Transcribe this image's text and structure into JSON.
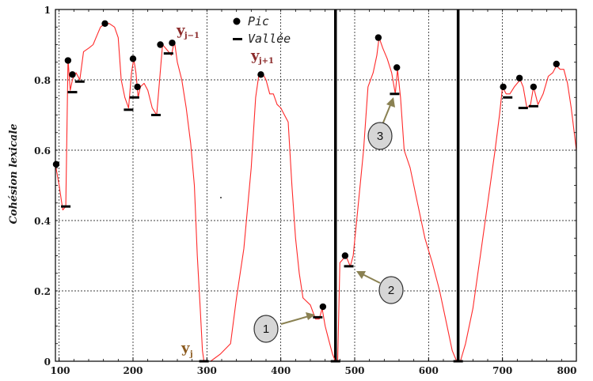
{
  "chart_data": {
    "type": "line",
    "title": "",
    "xlabel": "",
    "ylabel": "Cohésion lexicale",
    "xlim": [
      95,
      800
    ],
    "ylim": [
      0,
      1
    ],
    "x_ticks": [
      "100",
      "200",
      "300",
      "400",
      "500",
      "600",
      "700",
      "800"
    ],
    "y_ticks": [
      "0",
      "0.2",
      "0.4",
      "0.6",
      "0.8",
      "1"
    ],
    "grid": true,
    "line_color": "#ff2a2a",
    "series": [
      {
        "values": [
          [
            95,
            0.56
          ],
          [
            100,
            0.5
          ],
          [
            105,
            0.43
          ],
          [
            109,
            0.44
          ],
          [
            112,
            0.86
          ],
          [
            115,
            0.77
          ],
          [
            118,
            0.8
          ],
          [
            120,
            0.81
          ],
          [
            123,
            0.82
          ],
          [
            128,
            0.8
          ],
          [
            133,
            0.88
          ],
          [
            140,
            0.89
          ],
          [
            146,
            0.9
          ],
          [
            150,
            0.92
          ],
          [
            156,
            0.95
          ],
          [
            162,
            0.96
          ],
          [
            168,
            0.96
          ],
          [
            175,
            0.95
          ],
          [
            180,
            0.92
          ],
          [
            184,
            0.8
          ],
          [
            189,
            0.75
          ],
          [
            194,
            0.72
          ],
          [
            198,
            0.82
          ],
          [
            201,
            0.86
          ],
          [
            204,
            0.82
          ],
          [
            207,
            0.75
          ],
          [
            210,
            0.78
          ],
          [
            215,
            0.79
          ],
          [
            220,
            0.77
          ],
          [
            226,
            0.72
          ],
          [
            232,
            0.7
          ],
          [
            236,
            0.8
          ],
          [
            240,
            0.9
          ],
          [
            244,
            0.89
          ],
          [
            248,
            0.88
          ],
          [
            252,
            0.87
          ],
          [
            256,
            0.91
          ],
          [
            260,
            0.85
          ],
          [
            266,
            0.8
          ],
          [
            272,
            0.72
          ],
          [
            278,
            0.62
          ],
          [
            283,
            0.5
          ],
          [
            287,
            0.3
          ],
          [
            291,
            0.15
          ],
          [
            294,
            0.03
          ],
          [
            296,
            0.0
          ],
          [
            305,
            0.0
          ],
          [
            318,
            0.02
          ],
          [
            332,
            0.05
          ],
          [
            340,
            0.18
          ],
          [
            350,
            0.32
          ],
          [
            360,
            0.55
          ],
          [
            366,
            0.75
          ],
          [
            370,
            0.81
          ],
          [
            375,
            0.82
          ],
          [
            380,
            0.8
          ],
          [
            385,
            0.76
          ],
          [
            390,
            0.76
          ],
          [
            395,
            0.73
          ],
          [
            400,
            0.72
          ],
          [
            405,
            0.7
          ],
          [
            410,
            0.68
          ],
          [
            415,
            0.5
          ],
          [
            420,
            0.35
          ],
          [
            425,
            0.25
          ],
          [
            430,
            0.18
          ],
          [
            440,
            0.16
          ],
          [
            447,
            0.12
          ],
          [
            452,
            0.12
          ],
          [
            456,
            0.15
          ],
          [
            460,
            0.1
          ],
          [
            465,
            0.06
          ],
          [
            470,
            0.02
          ],
          [
            474,
            0.0
          ],
          [
            477,
            0.0
          ],
          [
            480,
            0.28
          ],
          [
            484,
            0.29
          ],
          [
            487,
            0.3
          ],
          [
            490,
            0.29
          ],
          [
            494,
            0.27
          ],
          [
            498,
            0.3
          ],
          [
            505,
            0.45
          ],
          [
            512,
            0.6
          ],
          [
            518,
            0.78
          ],
          [
            525,
            0.82
          ],
          [
            530,
            0.87
          ],
          [
            533,
            0.92
          ],
          [
            538,
            0.89
          ],
          [
            544,
            0.86
          ],
          [
            550,
            0.82
          ],
          [
            555,
            0.76
          ],
          [
            558,
            0.83
          ],
          [
            562,
            0.75
          ],
          [
            567,
            0.6
          ],
          [
            575,
            0.55
          ],
          [
            585,
            0.45
          ],
          [
            595,
            0.35
          ],
          [
            605,
            0.28
          ],
          [
            615,
            0.2
          ],
          [
            625,
            0.1
          ],
          [
            632,
            0.03
          ],
          [
            638,
            0.0
          ],
          [
            643,
            0.0
          ],
          [
            650,
            0.05
          ],
          [
            660,
            0.15
          ],
          [
            670,
            0.3
          ],
          [
            680,
            0.45
          ],
          [
            690,
            0.6
          ],
          [
            696,
            0.7
          ],
          [
            700,
            0.78
          ],
          [
            705,
            0.76
          ],
          [
            710,
            0.76
          ],
          [
            716,
            0.78
          ],
          [
            720,
            0.79
          ],
          [
            724,
            0.8
          ],
          [
            728,
            0.78
          ],
          [
            733,
            0.72
          ],
          [
            738,
            0.73
          ],
          [
            742,
            0.78
          ],
          [
            748,
            0.73
          ],
          [
            755,
            0.76
          ],
          [
            762,
            0.81
          ],
          [
            768,
            0.82
          ],
          [
            773,
            0.84
          ],
          [
            778,
            0.83
          ],
          [
            783,
            0.83
          ],
          [
            788,
            0.79
          ],
          [
            793,
            0.72
          ],
          [
            800,
            0.6
          ]
        ]
      }
    ],
    "peaks": [
      [
        96,
        0.56
      ],
      [
        112,
        0.855
      ],
      [
        118,
        0.815
      ],
      [
        162,
        0.96
      ],
      [
        200,
        0.86
      ],
      [
        206,
        0.78
      ],
      [
        237,
        0.9
      ],
      [
        253,
        0.905
      ],
      [
        373,
        0.815
      ],
      [
        457,
        0.155
      ],
      [
        487,
        0.3
      ],
      [
        532,
        0.92
      ],
      [
        557,
        0.835
      ],
      [
        701,
        0.78
      ],
      [
        723,
        0.805
      ],
      [
        742,
        0.78
      ],
      [
        773,
        0.845
      ]
    ],
    "valleys": [
      [
        109,
        0.44
      ],
      [
        118,
        0.765
      ],
      [
        128,
        0.795
      ],
      [
        194,
        0.715
      ],
      [
        202,
        0.75
      ],
      [
        231,
        0.7
      ],
      [
        248,
        0.875
      ],
      [
        296,
        0.0
      ],
      [
        450,
        0.125
      ],
      [
        474,
        0.0
      ],
      [
        492,
        0.27
      ],
      [
        554,
        0.76
      ],
      [
        640,
        0.0
      ],
      [
        707,
        0.75
      ],
      [
        728,
        0.72
      ],
      [
        742,
        0.725
      ]
    ],
    "boundaries": [
      474,
      640
    ],
    "legend": [
      {
        "symbol": "dot",
        "label": "Pic"
      },
      {
        "symbol": "dash",
        "label": "Vallée"
      }
    ],
    "legend_position": "top-center",
    "annotations": {
      "y_jm1": {
        "main": "y",
        "sub": "j−1"
      },
      "y_jp1": {
        "main": "y",
        "sub": "j+1"
      },
      "y_j": {
        "main": "y",
        "sub": "j"
      },
      "markers": [
        {
          "label": "1",
          "target": [
            450,
            0.125
          ]
        },
        {
          "label": "2",
          "target": [
            492,
            0.27
          ]
        },
        {
          "label": "3",
          "target": [
            554,
            0.76
          ]
        }
      ]
    },
    "annotation_color": "#8b2a2a",
    "arrow_color": "#8a8152"
  }
}
